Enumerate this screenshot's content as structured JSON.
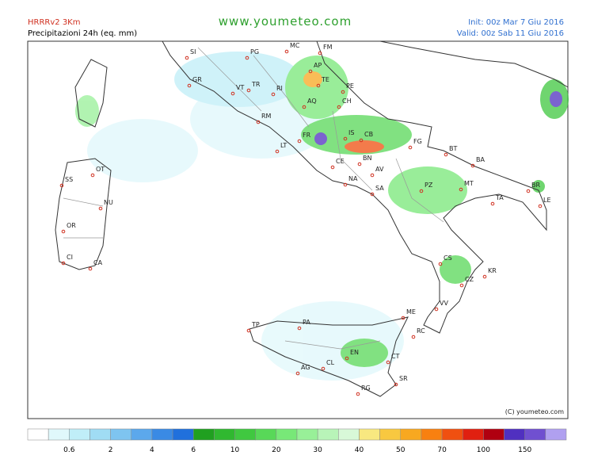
{
  "header": {
    "model": "HRRRv2 3Km",
    "subtitle": "Precipitazioni 24h (eq. mm)",
    "site": "www.youmeteo.com",
    "init": "Init: 00z Mar  7  Giu 2016",
    "valid": "Valid: 00z Sab  11 Giu 2016"
  },
  "map": {
    "copyright": "(C) youmeteo.com",
    "cities": [
      "SI",
      "PG",
      "MC",
      "FM",
      "AP",
      "TE",
      "GR",
      "VT",
      "TR",
      "RI",
      "AQ",
      "PE",
      "CH",
      "RM",
      "FR",
      "IS",
      "CB",
      "FG",
      "LT",
      "CE",
      "BN",
      "BT",
      "BA",
      "NA",
      "AV",
      "SA",
      "PZ",
      "MT",
      "TA",
      "BR",
      "LE",
      "SS",
      "OT",
      "NU",
      "OR",
      "CI",
      "CA",
      "CS",
      "KR",
      "CZ",
      "VV",
      "ME",
      "RC",
      "TP",
      "PA",
      "AG",
      "CL",
      "EN",
      "CT",
      "RG",
      "SR"
    ]
  },
  "legend": {
    "colors": [
      "#ffffff",
      "#e0f8fb",
      "#c0eef8",
      "#a0dcf4",
      "#7ec4f0",
      "#5ca8ec",
      "#3a8ae4",
      "#2070dc",
      "#20a020",
      "#30b830",
      "#40c840",
      "#58d858",
      "#78e878",
      "#98f098",
      "#b8f4b8",
      "#d8f8d8",
      "#f8e880",
      "#f8c840",
      "#f8a820",
      "#f88010",
      "#f05010",
      "#e02010",
      "#b00010",
      "#5030c0",
      "#7050d0",
      "#b0a0f0"
    ],
    "labels": [
      "0.6",
      "2",
      "4",
      "6",
      "10",
      "20",
      "30",
      "40",
      "50",
      "70",
      "100",
      "150"
    ]
  }
}
